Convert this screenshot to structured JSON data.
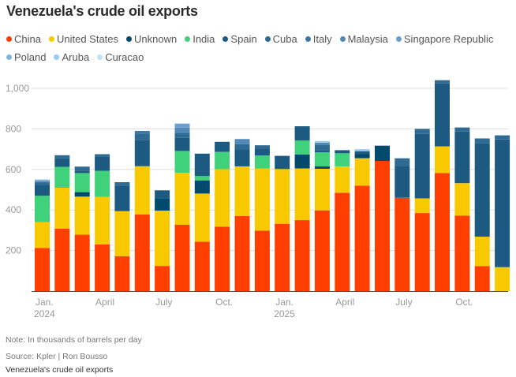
{
  "title": "Venezuela's crude oil exports",
  "footer": {
    "note": "Note: In thousands of barrels per day",
    "source": "Source: Kpler | Ron Bousso",
    "caption": "Venezuela's crude oil exports"
  },
  "chart_data": {
    "type": "bar",
    "stacked": true,
    "title": "Venezuela's crude oil exports",
    "xlabel": "",
    "ylabel": "Thousands of barrels per day",
    "ylim": [
      0,
      1000
    ],
    "yticks": [
      200,
      400,
      600,
      800,
      1000
    ],
    "ytick_labels": [
      "200",
      "400",
      "600",
      "800",
      "1,000"
    ],
    "grid": true,
    "legend_position": "top-left",
    "categories": [
      "Jan 2024",
      "Feb 2024",
      "Mar 2024",
      "Apr 2024",
      "May 2024",
      "Jun 2024",
      "Jul 2024",
      "Aug 2024",
      "Sep 2024",
      "Oct 2024",
      "Nov 2024",
      "Dec 2024",
      "Jan 2025",
      "Feb 2025",
      "Mar 2025",
      "Apr 2025",
      "May 2025",
      "Jun 2025",
      "Jul 2025",
      "Aug 2025",
      "Sep 2025",
      "Oct 2025",
      "Nov 2025",
      "Dec 2025"
    ],
    "xtick_labels": [
      {
        "index": 0,
        "line1": "Jan.",
        "line2": "2024"
      },
      {
        "index": 3,
        "line1": "April",
        "line2": ""
      },
      {
        "index": 6,
        "line1": "July",
        "line2": ""
      },
      {
        "index": 9,
        "line1": "Oct.",
        "line2": ""
      },
      {
        "index": 12,
        "line1": "Jan.",
        "line2": "2025"
      },
      {
        "index": 15,
        "line1": "April",
        "line2": ""
      },
      {
        "index": 18,
        "line1": "July",
        "line2": ""
      },
      {
        "index": 21,
        "line1": "Oct.",
        "line2": ""
      }
    ],
    "series": [
      {
        "name": "China",
        "color": "#ff3f00",
        "values": [
          212,
          308,
          278,
          230,
          172,
          378,
          124,
          327,
          243,
          318,
          370,
          298,
          332,
          350,
          398,
          485,
          520,
          642,
          460,
          385,
          582,
          372,
          123,
          0
        ]
      },
      {
        "name": "United States",
        "color": "#f9c900",
        "values": [
          128,
          202,
          188,
          235,
          222,
          238,
          273,
          256,
          238,
          283,
          245,
          306,
          270,
          255,
          205,
          130,
          135,
          0,
          0,
          72,
          132,
          160,
          145,
          118
        ]
      },
      {
        "name": "Unknown",
        "color": "#004a6e",
        "values": [
          0,
          0,
          22,
          0,
          0,
          0,
          60,
          0,
          65,
          0,
          0,
          0,
          0,
          68,
          12,
          0,
          20,
          75,
          0,
          0,
          0,
          0,
          0,
          0
        ]
      },
      {
        "name": "India",
        "color": "#3fd27a",
        "values": [
          130,
          103,
          94,
          128,
          0,
          0,
          0,
          108,
          22,
          85,
          0,
          65,
          0,
          70,
          70,
          65,
          0,
          0,
          0,
          0,
          0,
          0,
          0,
          0
        ]
      },
      {
        "name": "Spain",
        "color": "#1c5a82",
        "values": [
          55,
          42,
          12,
          70,
          125,
          130,
          40,
          65,
          110,
          50,
          85,
          35,
          65,
          70,
          10,
          15,
          15,
          0,
          155,
          318,
          310,
          255,
          460,
          630
        ]
      },
      {
        "name": "Cuba",
        "color": "#2e6a92",
        "values": [
          10,
          15,
          20,
          12,
          18,
          30,
          0,
          25,
          0,
          0,
          25,
          15,
          0,
          0,
          25,
          0,
          0,
          0,
          40,
          25,
          16,
          20,
          25,
          20
        ]
      },
      {
        "name": "Italy",
        "color": "#3f79a4",
        "values": [
          5,
          0,
          0,
          0,
          0,
          14,
          0,
          0,
          0,
          0,
          0,
          0,
          0,
          0,
          0,
          0,
          0,
          0,
          0,
          0,
          0,
          0,
          0,
          0
        ]
      },
      {
        "name": "Malaysia",
        "color": "#5089b6",
        "values": [
          0,
          0,
          0,
          0,
          0,
          0,
          0,
          25,
          0,
          0,
          25,
          0,
          0,
          0,
          12,
          0,
          0,
          0,
          0,
          0,
          0,
          0,
          0,
          0
        ]
      },
      {
        "name": "Singapore Republic",
        "color": "#6b9ecb",
        "values": [
          5,
          0,
          0,
          0,
          0,
          0,
          0,
          20,
          0,
          0,
          0,
          0,
          0,
          0,
          0,
          0,
          0,
          0,
          0,
          0,
          0,
          0,
          0,
          0
        ]
      },
      {
        "name": "Poland",
        "color": "#82b3dd",
        "values": [
          5,
          0,
          0,
          0,
          0,
          0,
          0,
          0,
          0,
          0,
          0,
          0,
          0,
          0,
          0,
          0,
          0,
          0,
          0,
          0,
          0,
          0,
          0,
          0
        ]
      },
      {
        "name": "Aruba",
        "color": "#9ccbf0",
        "values": [
          0,
          0,
          0,
          0,
          0,
          0,
          0,
          0,
          0,
          0,
          0,
          0,
          0,
          0,
          8,
          0,
          10,
          0,
          0,
          0,
          0,
          0,
          0,
          0
        ]
      },
      {
        "name": "Curacao",
        "color": "#b9e3fa",
        "values": [
          0,
          0,
          0,
          0,
          0,
          0,
          0,
          0,
          0,
          0,
          0,
          0,
          0,
          0,
          0,
          0,
          0,
          0,
          0,
          0,
          0,
          0,
          0,
          0
        ]
      }
    ]
  }
}
